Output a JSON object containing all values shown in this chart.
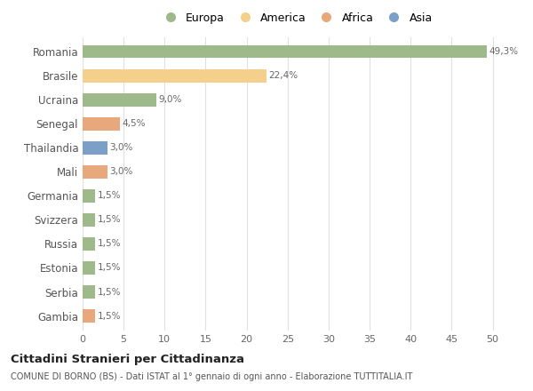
{
  "countries": [
    "Romania",
    "Brasile",
    "Ucraina",
    "Senegal",
    "Thailandia",
    "Mali",
    "Germania",
    "Svizzera",
    "Russia",
    "Estonia",
    "Serbia",
    "Gambia"
  ],
  "values": [
    49.3,
    22.4,
    9.0,
    4.5,
    3.0,
    3.0,
    1.5,
    1.5,
    1.5,
    1.5,
    1.5,
    1.5
  ],
  "labels": [
    "49,3%",
    "22,4%",
    "9,0%",
    "4,5%",
    "3,0%",
    "3,0%",
    "1,5%",
    "1,5%",
    "1,5%",
    "1,5%",
    "1,5%",
    "1,5%"
  ],
  "continents": [
    "Europa",
    "America",
    "Europa",
    "Africa",
    "Asia",
    "Africa",
    "Europa",
    "Europa",
    "Europa",
    "Europa",
    "Europa",
    "Africa"
  ],
  "colors": {
    "Europa": "#9eba8a",
    "America": "#f5d08c",
    "Africa": "#e8a87c",
    "Asia": "#7b9fc7"
  },
  "legend_order": [
    "Europa",
    "America",
    "Africa",
    "Asia"
  ],
  "title": "Cittadini Stranieri per Cittadinanza",
  "subtitle": "COMUNE DI BORNO (BS) - Dati ISTAT al 1° gennaio di ogni anno - Elaborazione TUTTITALIA.IT",
  "xlim": [
    0,
    52
  ],
  "xticks": [
    0,
    5,
    10,
    15,
    20,
    25,
    30,
    35,
    40,
    45,
    50
  ],
  "grid_color": "#e0e0e0",
  "background_color": "#ffffff",
  "bar_height": 0.55
}
